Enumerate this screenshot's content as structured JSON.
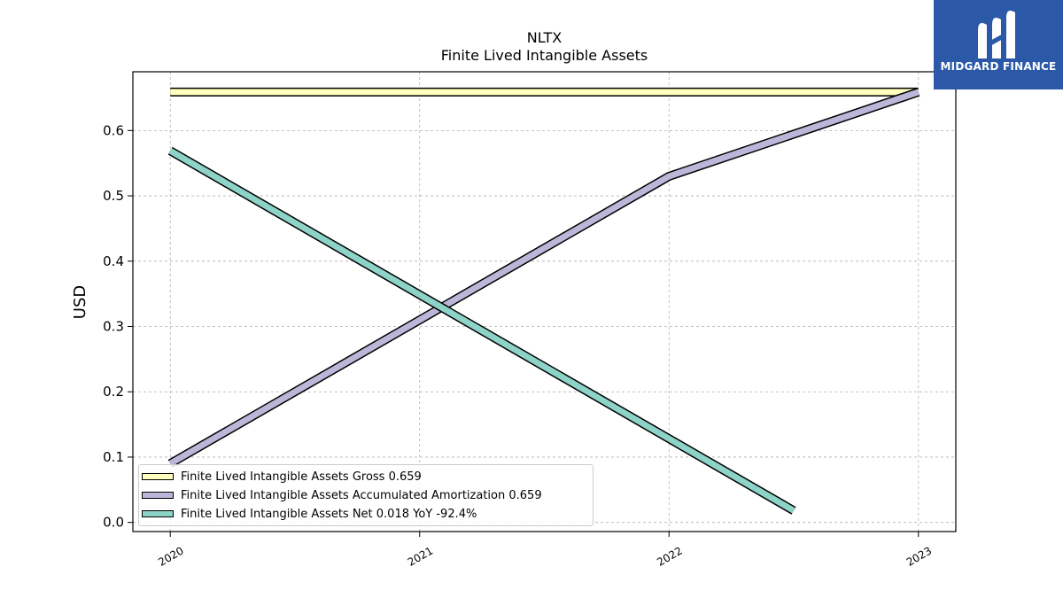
{
  "chart_data": {
    "type": "line",
    "title": "NLTX",
    "subtitle": "Finite Lived Intangible Assets",
    "ylabel": "USD",
    "xlabel": "",
    "x_ticks": [
      "2020",
      "2021",
      "2022",
      "2023"
    ],
    "y_ticks": [
      "0.0",
      "0.1",
      "0.2",
      "0.3",
      "0.4",
      "0.5",
      "0.6"
    ],
    "xlim": [
      2019.85,
      2023.15
    ],
    "ylim": [
      -0.014,
      0.69
    ],
    "grid": true,
    "legend_position": "lower-left",
    "series": [
      {
        "name": "Finite Lived Intangible Assets Gross  0.659",
        "color": "#ffffbf",
        "points": [
          [
            2020.0,
            0.659
          ],
          [
            2023.0,
            0.659
          ]
        ]
      },
      {
        "name": "Finite Lived Intangible Assets Accumulated Amortization  0.659",
        "color": "#bcb6d8",
        "points": [
          [
            2020.0,
            0.09
          ],
          [
            2022.0,
            0.53
          ],
          [
            2023.0,
            0.659
          ]
        ]
      },
      {
        "name": "Finite Lived Intangible Assets Net  0.018 YoY -92.4%",
        "color": "#8dd3c7",
        "points": [
          [
            2020.0,
            0.569
          ],
          [
            2022.5,
            0.018
          ]
        ]
      }
    ]
  },
  "logo": {
    "text": "MIDGARD FINANCE",
    "background": "#2b59a8"
  }
}
